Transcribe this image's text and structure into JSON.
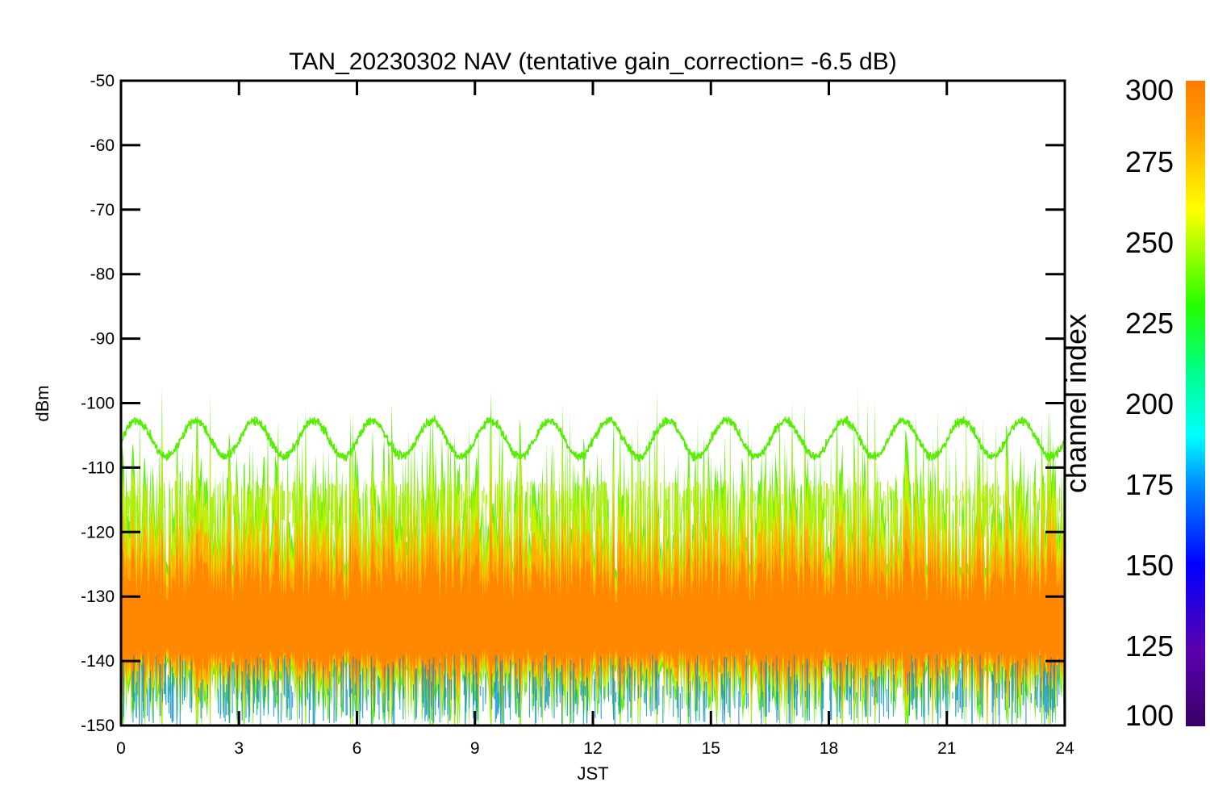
{
  "chart_data": {
    "type": "line",
    "title": "TAN_20230302 NAV (tentative gain_correction= -6.5 dB)",
    "xlabel": "JST",
    "ylabel": "dBm",
    "xlim": [
      0,
      24
    ],
    "ylim": [
      -150,
      -50
    ],
    "xticks": [
      0,
      3,
      6,
      9,
      12,
      15,
      18,
      21,
      24
    ],
    "yticks": [
      -50,
      -60,
      -70,
      -80,
      -90,
      -100,
      -110,
      -120,
      -130,
      -140,
      -150
    ],
    "grid": false,
    "series": [
      {
        "color": "#55ee00",
        "description": "oscillating signal centered near -105.5 dBm, amplitude about 2.8 dB, period about 1.5 h",
        "center": -105.5,
        "amplitude": 2.8,
        "period_hours": 1.5,
        "x": [
          0,
          0.4,
          0.77,
          1.1,
          1.5,
          1.9,
          2.3,
          2.7,
          3.05,
          3.45,
          3.82,
          4.25,
          4.55
        ],
        "y": [
          -105,
          -102.5,
          -108,
          -103,
          -102.8,
          -108.5,
          -102.7,
          -108,
          -102.8,
          -108.8,
          -103,
          -108.5,
          -103
        ]
      },
      {
        "description": "noise floor across channels, bulk between about -115 and -145 dBm, densest near -135 dBm",
        "color_by": "channel index",
        "y_upper": -115,
        "y_lower": -145,
        "y_center": -135
      }
    ],
    "colorbar": {
      "label": "channel index",
      "range": [
        100,
        300
      ],
      "ticks": [
        300,
        275,
        250,
        225,
        200,
        175,
        150,
        125,
        100
      ],
      "colormap": "rainbow (purple-blue-cyan-green-yellow-orange)"
    }
  }
}
